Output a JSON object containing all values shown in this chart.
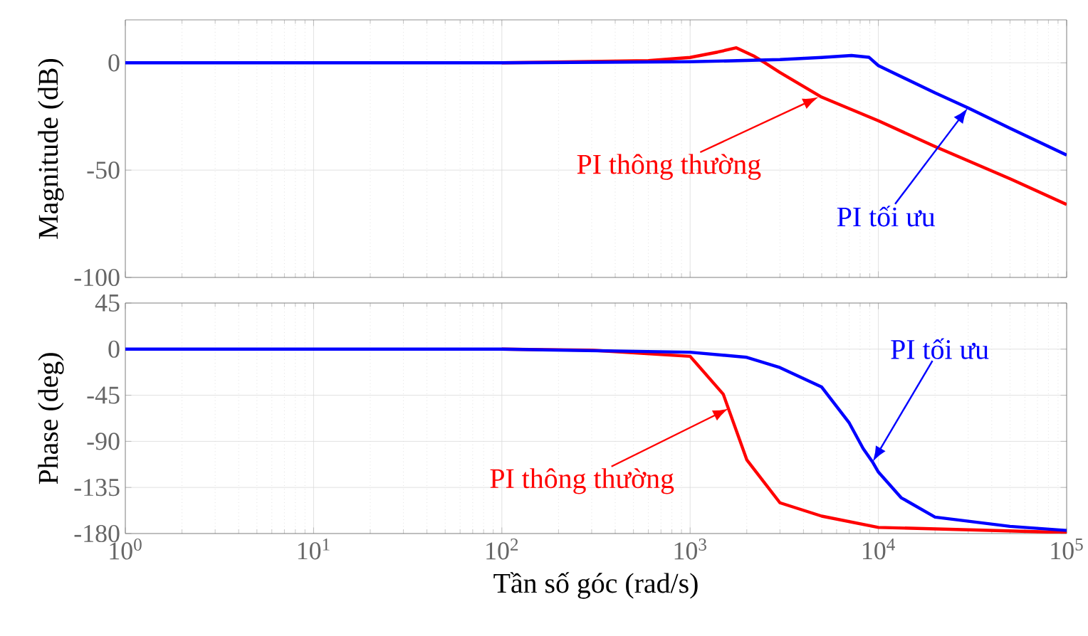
{
  "chart_data": [
    {
      "type": "line",
      "ylabel": "Magnitude (dB)",
      "log": "x",
      "grid": true,
      "tick_labels": "y",
      "xlim": [
        1,
        100000
      ],
      "ylim": [
        -100,
        20
      ],
      "xticks": [
        1,
        10,
        100,
        1000,
        10000,
        100000
      ],
      "yticks": [
        -100,
        -50,
        0
      ],
      "series": [
        {
          "color": "#ff0000",
          "x": [
            100,
            600,
            1000,
            1400,
            1760,
            2200,
            2500,
            3000,
            5000,
            10000,
            20000,
            50000,
            100000
          ],
          "values": [
            0,
            1,
            2.5,
            5,
            7,
            3,
            0,
            -4.5,
            -16,
            -27,
            -39,
            -54,
            -66
          ]
        },
        {
          "color": "#0000ff",
          "x": [
            1,
            10,
            100,
            1000,
            3000,
            5000,
            7200,
            8900,
            10000,
            20000,
            30000,
            50000,
            100000
          ],
          "values": [
            0,
            0,
            0,
            0.5,
            1.5,
            2.5,
            3.4,
            2.6,
            -1.3,
            -14,
            -21,
            -30.5,
            -43
          ]
        }
      ],
      "annotations": [
        {
          "text": "PI thông thường",
          "x": 4800,
          "y": -16
        },
        "PI tối ưu"
      ]
    },
    {
      "type": "line",
      "ylabel": "Phase (deg)",
      "xlabel": "Tần số góc (rad/s)",
      "log": "x",
      "grid": true,
      "xlim": [
        1,
        100000
      ],
      "ylim": [
        -180,
        45
      ],
      "xticks": [
        {
          "value": 1,
          "label": "10$^{0}$"
        },
        {
          "value": 10,
          "label": "10$^{1}$"
        },
        {
          "value": 100,
          "label": "10$^{2}$"
        },
        {
          "value": 1000,
          "label": "10$^{3}$"
        },
        {
          "value": 10000,
          "label": "10$^{4}$"
        },
        {
          "value": 100000,
          "label": "10$^{5}$"
        }
      ],
      "yticks": [
        -180,
        -135,
        -90,
        -45,
        0,
        45
      ],
      "series": [
        {
          "color": "#ff0000",
          "x": [
            100,
            300,
            1000,
            1500,
            2000,
            3000,
            5000,
            10000,
            100000
          ],
          "values": [
            0,
            -1,
            -7,
            -44,
            -108,
            -150,
            -163,
            -174,
            -179
          ]
        },
        {
          "color": "#0000ff",
          "x": [
            1,
            10,
            100,
            1000,
            2000,
            3000,
            5000,
            7000,
            8300,
            9300,
            10000,
            13200,
            20000,
            50000,
            100000
          ],
          "values": [
            0,
            0,
            0,
            -3,
            -8,
            -18,
            -37,
            -72,
            -97,
            -110,
            -120,
            -145,
            -164,
            -173,
            -177
          ]
        }
      ],
      "annotations": [
        "PI tối ưu",
        {
          "text": "PI thông thường",
          "x": 1600,
          "y": -58
        }
      ]
    }
  ]
}
